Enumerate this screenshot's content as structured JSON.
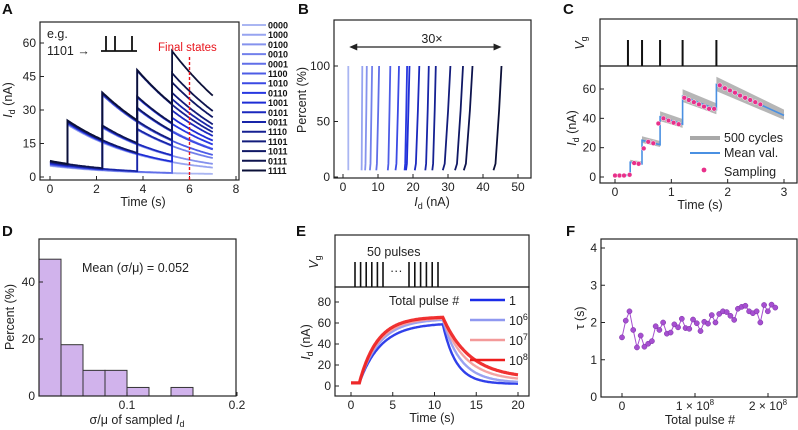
{
  "panels": {
    "A": "A",
    "B": "B",
    "C": "C",
    "D": "D",
    "E": "E",
    "F": "F"
  },
  "chart_data": [
    {
      "id": "A",
      "type": "line",
      "xlabel": "Time (s)",
      "ylabel": {
        "main": "I",
        "sub": "d",
        "rest": " (nA)"
      },
      "xlim": [
        0,
        8
      ],
      "ylim": [
        0,
        68
      ],
      "xticks": [
        "0",
        "2",
        "4",
        "6",
        "8"
      ],
      "yticks": [
        "0",
        "15",
        "30",
        "45",
        "60"
      ],
      "annotation_eg": "e.g.",
      "annotation_code": "1101 →",
      "final_states_label": "Final states",
      "final_states_time": 6,
      "pulse_times": [
        0.75,
        2.25,
        3.75,
        5.25
      ],
      "series_labels": [
        "0000",
        "1000",
        "0100",
        "0010",
        "0001",
        "1100",
        "1010",
        "0110",
        "1001",
        "0101",
        "0011",
        "1110",
        "1101",
        "1011",
        "0111",
        "1111"
      ],
      "color_light": "#aab6f2",
      "color_mid": "#1f2fe0",
      "color_dark": "#0b1038"
    },
    {
      "id": "B",
      "type": "line",
      "xlabel": {
        "main": "I",
        "sub": "d",
        "rest": " (nA)"
      },
      "ylabel": "Percent (%)",
      "xlim": [
        -3,
        52
      ],
      "ylim": [
        0,
        140
      ],
      "xticks": [
        "0",
        "10",
        "20",
        "30",
        "40",
        "50"
      ],
      "yticks": [
        "0",
        "50",
        "100"
      ],
      "arrow_label": "30×",
      "series": [
        {
          "name": "0000",
          "low": 1.5,
          "high": 1.5
        },
        {
          "name": "1000",
          "low": 5.3,
          "high": 5.5
        },
        {
          "name": "0100",
          "low": 6.3,
          "high": 6.8
        },
        {
          "name": "0010",
          "low": 7.7,
          "high": 8.3
        },
        {
          "name": "0001",
          "low": 9.5,
          "high": 10.3
        },
        {
          "name": "1100",
          "low": 12.8,
          "high": 13.5
        },
        {
          "name": "1010",
          "low": 15.0,
          "high": 16.0
        },
        {
          "name": "0110",
          "low": 17.6,
          "high": 18.3
        },
        {
          "name": "1001",
          "low": 18.0,
          "high": 19.0
        },
        {
          "name": "0101",
          "low": 20.5,
          "high": 21.8
        },
        {
          "name": "0011",
          "low": 23.5,
          "high": 24.5
        },
        {
          "name": "1110",
          "low": 25.5,
          "high": 26.5
        },
        {
          "name": "1101",
          "low": 28.5,
          "high": 30.7
        },
        {
          "name": "1011",
          "low": 32.0,
          "high": 34.3
        },
        {
          "name": "0111",
          "low": 34.5,
          "high": 37.0
        },
        {
          "name": "1111",
          "low": 43.0,
          "high": 45.3
        }
      ]
    },
    {
      "id": "C",
      "type": "line",
      "top_ylabel": {
        "main": "V",
        "sub": "g"
      },
      "xlabel": "Time (s)",
      "ylabel": {
        "main": "I",
        "sub": "d",
        "rest": " (nA)"
      },
      "xlim": [
        -0.2,
        3.1
      ],
      "ylim": [
        -4,
        75
      ],
      "xticks": [
        "0",
        "1",
        "2",
        "3"
      ],
      "yticks": [
        "0",
        "20",
        "40",
        "60"
      ],
      "pulse_times": [
        0.23,
        0.48,
        0.8,
        1.2,
        1.8
      ],
      "mean": [
        [
          0,
          1
        ],
        [
          0.27,
          1
        ],
        [
          0.27,
          10
        ],
        [
          0.48,
          9
        ],
        [
          0.48,
          25
        ],
        [
          0.8,
          22
        ],
        [
          0.8,
          41
        ],
        [
          1.2,
          36
        ],
        [
          1.2,
          55
        ],
        [
          1.8,
          46
        ],
        [
          1.8,
          63
        ],
        [
          3.0,
          42
        ]
      ],
      "sampling": [
        [
          0,
          1
        ],
        [
          0.08,
          1
        ],
        [
          0.16,
          1
        ],
        [
          0.26,
          1.5
        ],
        [
          0.34,
          9.5
        ],
        [
          0.42,
          9
        ],
        [
          0.51,
          19.5
        ],
        [
          0.59,
          24
        ],
        [
          0.68,
          23
        ],
        [
          0.77,
          36.5
        ],
        [
          0.86,
          40
        ],
        [
          0.95,
          38.5
        ],
        [
          1.04,
          37
        ],
        [
          1.13,
          36
        ],
        [
          1.23,
          54
        ],
        [
          1.31,
          52.5
        ],
        [
          1.4,
          51
        ],
        [
          1.49,
          49.5
        ],
        [
          1.58,
          48
        ],
        [
          1.67,
          46.5
        ],
        [
          1.76,
          46.5
        ],
        [
          1.86,
          62.5
        ],
        [
          1.95,
          60.5
        ],
        [
          2.04,
          59
        ],
        [
          2.13,
          57.5
        ],
        [
          2.22,
          55.5
        ],
        [
          2.31,
          54
        ],
        [
          2.4,
          52.5
        ],
        [
          2.49,
          51
        ],
        [
          2.58,
          49.5
        ]
      ],
      "legend": [
        "500 cycles",
        "Mean val.",
        "Sampling"
      ],
      "colors": {
        "band": "#a9a9a9",
        "mean": "#4a90e2",
        "sampling": "#e8308a"
      }
    },
    {
      "id": "D",
      "type": "bar",
      "xlabel": {
        "main": "σ/μ of sampled ",
        "it": "I",
        "sub": "d"
      },
      "ylabel": "Percent (%)",
      "xlim": [
        0.02,
        0.2
      ],
      "ylim": [
        0,
        55
      ],
      "xticks": [
        "0.1",
        "0.2"
      ],
      "xtick_values": [
        0.1,
        0.2
      ],
      "yticks": [
        "0",
        "20",
        "40"
      ],
      "bins": [
        [
          0.02,
          0.04,
          48
        ],
        [
          0.04,
          0.06,
          18
        ],
        [
          0.06,
          0.08,
          9
        ],
        [
          0.08,
          0.1,
          9
        ],
        [
          0.1,
          0.12,
          3
        ],
        [
          0.12,
          0.14,
          0
        ],
        [
          0.14,
          0.16,
          3
        ]
      ],
      "annotation": "Mean (σ/μ) = 0.052",
      "color": "#d1b3ec"
    },
    {
      "id": "E",
      "type": "line",
      "top_ylabel": {
        "main": "V",
        "sub": "g"
      },
      "pulses_label": "50 pulses",
      "ellipsis": "···",
      "xlabel": "Time (s)",
      "ylabel": {
        "main": "I",
        "sub": "d",
        "rest": " (nA)"
      },
      "xlim": [
        -2,
        21.5
      ],
      "ylim": [
        -10,
        95
      ],
      "xticks": [
        "0",
        "5",
        "10",
        "15",
        "20"
      ],
      "yticks": [
        "0",
        "20",
        "40",
        "60",
        "80"
      ],
      "legend_title": "Total pulse #",
      "series": [
        {
          "name": "1",
          "exp": "",
          "color": "#1a2be8",
          "plateau": 60,
          "end": 2
        },
        {
          "name": "10",
          "exp": "6",
          "color": "#8f98f0",
          "plateau": 64,
          "end": 3
        },
        {
          "name": "10",
          "exp": "7",
          "color": "#f39a9a",
          "plateau": 65,
          "end": 5
        },
        {
          "name": "10",
          "exp": "8",
          "color": "#ee1c1c",
          "plateau": 66,
          "end": 7
        }
      ]
    },
    {
      "id": "F",
      "type": "scatter",
      "xlabel": "Total pulse #",
      "ylabel": "τ (s)",
      "xlim": [
        -30000000.0,
        240000000.0
      ],
      "ylim": [
        0,
        4.2
      ],
      "xticks": [
        {
          "m": "0",
          "e": ""
        },
        {
          "m": "1 × 10",
          "e": "8"
        },
        {
          "m": "2 × 10",
          "e": "8"
        }
      ],
      "yticks": [
        "0",
        "1",
        "2",
        "3",
        "4"
      ],
      "x_max": 210000000.0,
      "tau": [
        1.6,
        2.05,
        2.3,
        1.8,
        1.33,
        1.65,
        1.35,
        1.43,
        1.5,
        1.9,
        1.8,
        2.0,
        1.7,
        1.73,
        1.95,
        1.87,
        2.1,
        1.85,
        1.83,
        2.08,
        1.98,
        1.77,
        2.02,
        1.97,
        2.2,
        2.0,
        2.23,
        2.3,
        2.28,
        2.18,
        2.07,
        2.37,
        2.42,
        2.45,
        2.3,
        2.25,
        2.3,
        2.0,
        2.47,
        2.3,
        2.48,
        2.4
      ],
      "color": "#a64fd0"
    }
  ]
}
